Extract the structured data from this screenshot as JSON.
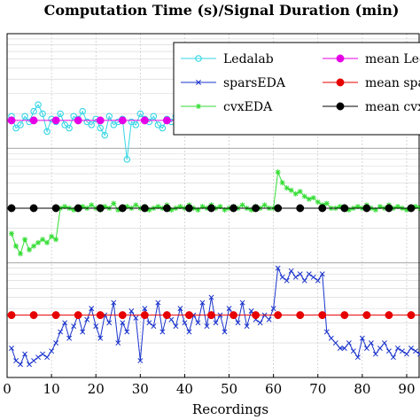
{
  "chart_data": {
    "type": "line",
    "title": "Computation Time (s)/Signal Duration (min)",
    "xlabel": "Recordings",
    "ylabel": "",
    "xlim": [
      0,
      93
    ],
    "x_ticks": [
      0,
      10,
      20,
      30,
      40,
      50,
      60,
      70,
      80,
      90
    ],
    "y_scale": "log",
    "ylim": [
      0.01,
      10
    ],
    "grid": true,
    "legend_position": "top-right",
    "colors": {
      "Ledalab": "#33d6e6",
      "sparsEDA": "#1a33cc",
      "cvxEDA": "#33dd33",
      "mean Ledalab": "#e600e6",
      "mean sparsEDA": "#e60000",
      "mean cvxEDA": "#000000"
    },
    "series": [
      {
        "name": "Ledalab",
        "marker": "circle",
        "y": [
          1.9,
          1.5,
          1.6,
          1.9,
          1.7,
          2.1,
          2.4,
          2.0,
          1.4,
          1.8,
          1.7,
          2.0,
          1.6,
          1.5,
          1.9,
          1.8,
          2.1,
          1.7,
          1.6,
          1.8,
          1.5,
          1.3,
          1.9,
          1.6,
          1.7,
          1.8,
          0.8,
          1.7,
          1.6,
          2.0,
          1.8,
          1.7,
          1.9,
          1.6,
          1.5,
          1.8,
          1.7,
          1.9,
          1.6,
          1.5,
          1.8,
          1.9,
          1.7,
          1.6,
          1.8,
          1.7,
          1.9,
          1.6,
          1.8,
          1.7,
          1.6,
          1.8,
          1.9,
          1.7,
          1.6,
          1.8,
          1.7,
          1.9,
          1.8,
          1.6,
          3.3,
          2.0,
          1.8,
          1.7,
          1.9,
          1.6,
          1.8,
          1.7,
          1.5,
          1.8,
          1.9,
          1.7,
          1.6,
          1.8,
          1.9,
          2.0,
          1.7,
          1.8,
          1.9,
          1.6,
          1.7,
          1.8,
          1.9,
          1.7,
          1.8,
          1.9,
          1.6,
          1.8,
          1.7,
          1.9,
          1.8,
          1.7,
          1.8
        ]
      },
      {
        "name": "sparsEDA",
        "marker": "x",
        "y": [
          0.018,
          0.014,
          0.013,
          0.016,
          0.013,
          0.014,
          0.015,
          0.016,
          0.015,
          0.017,
          0.02,
          0.025,
          0.03,
          0.022,
          0.028,
          0.035,
          0.025,
          0.032,
          0.04,
          0.028,
          0.022,
          0.035,
          0.03,
          0.045,
          0.02,
          0.03,
          0.025,
          0.038,
          0.033,
          0.014,
          0.04,
          0.03,
          0.028,
          0.045,
          0.025,
          0.035,
          0.032,
          0.028,
          0.04,
          0.03,
          0.025,
          0.035,
          0.03,
          0.045,
          0.028,
          0.05,
          0.03,
          0.035,
          0.025,
          0.04,
          0.035,
          0.03,
          0.045,
          0.028,
          0.038,
          0.032,
          0.03,
          0.035,
          0.032,
          0.04,
          0.09,
          0.075,
          0.07,
          0.085,
          0.075,
          0.08,
          0.07,
          0.08,
          0.075,
          0.07,
          0.08,
          0.025,
          0.022,
          0.02,
          0.018,
          0.018,
          0.02,
          0.017,
          0.015,
          0.022,
          0.018,
          0.02,
          0.016,
          0.018,
          0.02,
          0.017,
          0.015,
          0.018,
          0.017,
          0.016,
          0.018,
          0.017,
          0.016
        ]
      },
      {
        "name": "cvxEDA",
        "marker": "star",
        "y": [
          0.18,
          0.14,
          0.12,
          0.16,
          0.13,
          0.14,
          0.15,
          0.16,
          0.15,
          0.17,
          0.16,
          0.3,
          0.31,
          0.3,
          0.29,
          0.3,
          0.31,
          0.3,
          0.32,
          0.3,
          0.29,
          0.31,
          0.3,
          0.33,
          0.29,
          0.3,
          0.31,
          0.3,
          0.32,
          0.3,
          0.31,
          0.29,
          0.3,
          0.31,
          0.3,
          0.32,
          0.29,
          0.3,
          0.31,
          0.3,
          0.32,
          0.3,
          0.29,
          0.31,
          0.3,
          0.32,
          0.3,
          0.31,
          0.29,
          0.3,
          0.31,
          0.3,
          0.32,
          0.3,
          0.29,
          0.31,
          0.3,
          0.32,
          0.3,
          0.3,
          0.62,
          0.5,
          0.45,
          0.43,
          0.4,
          0.42,
          0.38,
          0.36,
          0.37,
          0.34,
          0.32,
          0.33,
          0.3,
          0.3,
          0.31,
          0.3,
          0.29,
          0.3,
          0.31,
          0.3,
          0.32,
          0.3,
          0.29,
          0.31,
          0.3,
          0.32,
          0.3,
          0.31,
          0.3,
          0.29,
          0.3,
          0.31,
          0.3
        ]
      },
      {
        "name": "mean Ledalab",
        "marker": "filled-circle",
        "y_const": 1.75
      },
      {
        "name": "mean sparsEDA",
        "marker": "filled-circle",
        "y_const": 0.035
      },
      {
        "name": "mean cvxEDA",
        "marker": "filled-circle",
        "y_const": 0.3
      }
    ]
  }
}
